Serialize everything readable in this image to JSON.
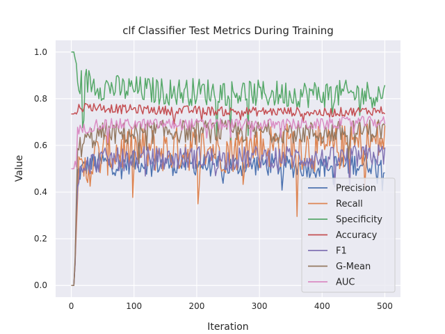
{
  "chart_data": {
    "type": "line",
    "title": "clf Classifier Test Metrics During Training",
    "xlabel": "Iteration",
    "ylabel": "Value",
    "xlim": [
      -25,
      525
    ],
    "ylim": [
      -0.05,
      1.05
    ],
    "xticks": [
      0,
      100,
      200,
      300,
      400,
      500
    ],
    "yticks": [
      0.0,
      0.2,
      0.4,
      0.6,
      0.8,
      1.0
    ],
    "xtick_labels": [
      "0",
      "100",
      "200",
      "300",
      "400",
      "500"
    ],
    "ytick_labels": [
      "0.0",
      "0.2",
      "0.4",
      "0.6",
      "0.8",
      "1.0"
    ],
    "grid": true,
    "legend_position": "lower-right",
    "background": "#eaeaf2",
    "series": [
      {
        "name": "Precision",
        "color": "#4c72b0",
        "x": [
          0,
          5,
          10,
          20,
          30,
          40,
          50,
          60,
          80,
          100,
          150,
          200,
          250,
          300,
          350,
          400,
          450,
          500
        ],
        "values": [
          0.0,
          0.0,
          0.48,
          0.5,
          0.52,
          0.52,
          0.53,
          0.52,
          0.52,
          0.53,
          0.52,
          0.52,
          0.51,
          0.52,
          0.51,
          0.51,
          0.52,
          0.53
        ]
      },
      {
        "name": "Recall",
        "color": "#dd8452",
        "x": [
          0,
          5,
          10,
          20,
          30,
          40,
          50,
          60,
          80,
          100,
          150,
          200,
          250,
          300,
          350,
          400,
          450,
          500
        ],
        "values": [
          0.0,
          0.0,
          0.45,
          0.48,
          0.52,
          0.55,
          0.56,
          0.57,
          0.58,
          0.58,
          0.58,
          0.59,
          0.58,
          0.6,
          0.6,
          0.58,
          0.6,
          0.62
        ]
      },
      {
        "name": "Specificity",
        "color": "#55a868",
        "x": [
          0,
          5,
          10,
          20,
          30,
          40,
          50,
          60,
          80,
          100,
          150,
          200,
          250,
          300,
          350,
          400,
          450,
          500
        ],
        "values": [
          1.0,
          1.0,
          0.86,
          0.88,
          0.87,
          0.86,
          0.85,
          0.85,
          0.84,
          0.84,
          0.83,
          0.83,
          0.83,
          0.82,
          0.82,
          0.82,
          0.82,
          0.82
        ]
      },
      {
        "name": "Accuracy",
        "color": "#c44e52",
        "x": [
          0,
          5,
          10,
          20,
          30,
          40,
          50,
          60,
          80,
          100,
          150,
          200,
          250,
          300,
          350,
          400,
          450,
          500
        ],
        "values": [
          0.735,
          0.735,
          0.76,
          0.765,
          0.765,
          0.765,
          0.76,
          0.76,
          0.755,
          0.755,
          0.75,
          0.75,
          0.745,
          0.745,
          0.745,
          0.74,
          0.745,
          0.75
        ]
      },
      {
        "name": "F1",
        "color": "#8172b3",
        "x": [
          0,
          5,
          10,
          20,
          30,
          40,
          50,
          60,
          80,
          100,
          150,
          200,
          250,
          300,
          350,
          400,
          450,
          500
        ],
        "values": [
          0.0,
          0.0,
          0.46,
          0.49,
          0.52,
          0.53,
          0.54,
          0.54,
          0.54,
          0.55,
          0.54,
          0.55,
          0.54,
          0.55,
          0.55,
          0.54,
          0.55,
          0.56
        ]
      },
      {
        "name": "G-Mean",
        "color": "#937860",
        "x": [
          0,
          5,
          10,
          20,
          30,
          40,
          50,
          60,
          80,
          100,
          150,
          200,
          250,
          300,
          350,
          400,
          450,
          500
        ],
        "values": [
          0.0,
          0.0,
          0.58,
          0.61,
          0.63,
          0.64,
          0.65,
          0.65,
          0.65,
          0.65,
          0.66,
          0.66,
          0.66,
          0.66,
          0.66,
          0.65,
          0.66,
          0.67
        ]
      },
      {
        "name": "AUC",
        "color": "#da8bc3",
        "x": [
          0,
          5,
          10,
          20,
          30,
          40,
          50,
          60,
          80,
          100,
          150,
          200,
          250,
          300,
          350,
          400,
          450,
          500
        ],
        "values": [
          0.5,
          0.5,
          0.66,
          0.67,
          0.68,
          0.69,
          0.69,
          0.69,
          0.69,
          0.69,
          0.69,
          0.69,
          0.69,
          0.69,
          0.69,
          0.69,
          0.7,
          0.7
        ]
      }
    ]
  }
}
